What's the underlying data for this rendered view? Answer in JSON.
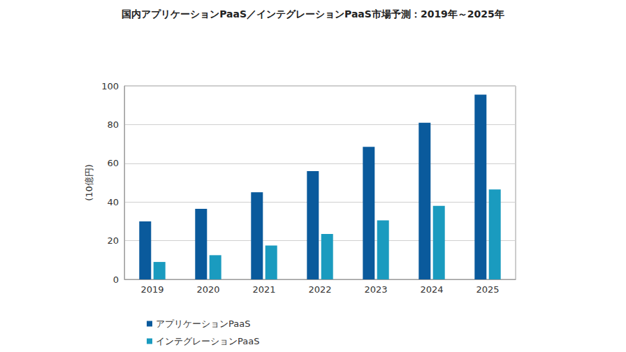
{
  "chart_data": {
    "type": "bar",
    "title": "国内アプリケーションPaaS／インテグレーションPaaS市場予測：2019年～2025年",
    "y_label": "(10億円)",
    "categories": [
      "2019",
      "2020",
      "2021",
      "2022",
      "2023",
      "2024",
      "2025"
    ],
    "series": [
      {
        "name": "アプリケーションPaaS",
        "color": "#0a5a9c",
        "values": [
          30,
          36.5,
          45,
          56,
          68.5,
          81,
          95.5
        ]
      },
      {
        "name": "インテグレーションPaaS",
        "color": "#1a9bbf",
        "values": [
          9,
          12.5,
          17.5,
          23.5,
          30.5,
          38,
          46.5
        ]
      }
    ],
    "ylim": [
      0,
      100
    ],
    "yticks": [
      0,
      20,
      40,
      60,
      80,
      100
    ],
    "grid": true,
    "legend": "bottom-left"
  }
}
